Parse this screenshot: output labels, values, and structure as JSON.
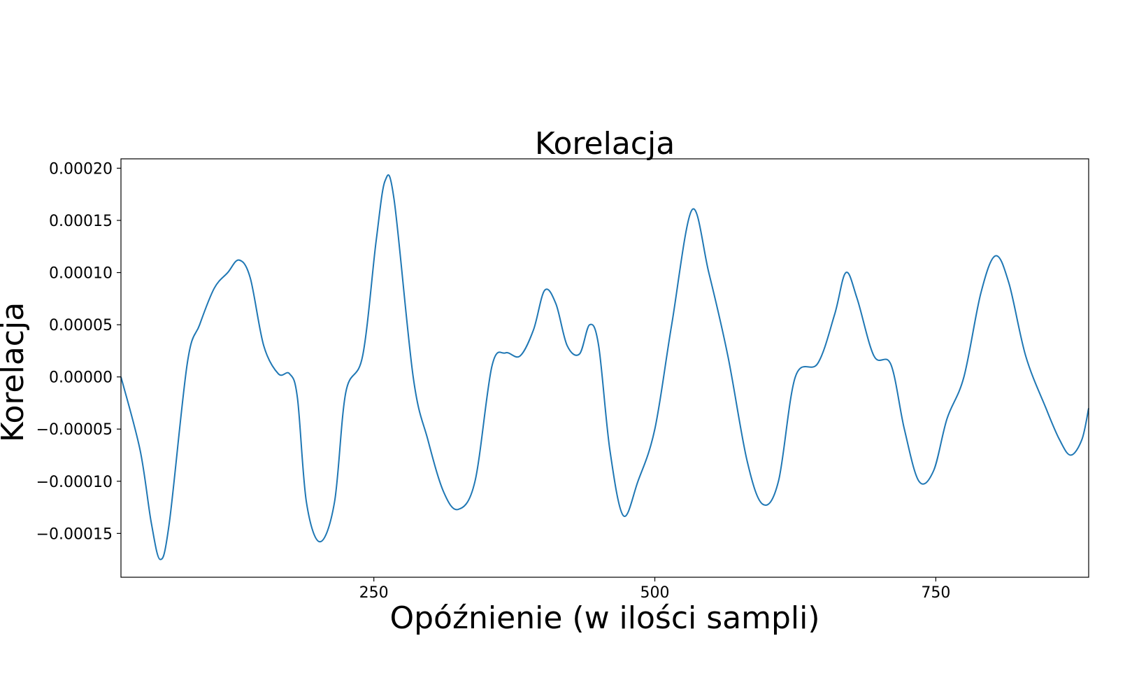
{
  "chart_data": {
    "type": "line",
    "title": "Korelacja",
    "xlabel": "Opóźnienie (w ilości sampli)",
    "ylabel": "Korelacja",
    "xlim": [
      25,
      886
    ],
    "ylim": [
      -0.000192,
      0.000209
    ],
    "grid": false,
    "x_ticks": [
      {
        "value": 250,
        "label": "250"
      },
      {
        "value": 500,
        "label": "500"
      },
      {
        "value": 750,
        "label": "750"
      }
    ],
    "y_ticks": [
      {
        "value": 0.0002,
        "label": "0.00020"
      },
      {
        "value": 0.00015,
        "label": "0.00015"
      },
      {
        "value": 0.0001,
        "label": "0.00010"
      },
      {
        "value": 5e-05,
        "label": "0.00005"
      },
      {
        "value": 0.0,
        "label": "0.00000"
      },
      {
        "value": -5e-05,
        "label": "−0.00005"
      },
      {
        "value": -0.0001,
        "label": "−0.00010"
      },
      {
        "value": -0.00015,
        "label": "−0.00015"
      }
    ],
    "series": [
      {
        "color": "#1f77b4",
        "points": [
          [
            25,
            0.0
          ],
          [
            42,
            -7e-05
          ],
          [
            52,
            -0.00014
          ],
          [
            60,
            -0.000175
          ],
          [
            68,
            -0.00014
          ],
          [
            84,
            1.3e-05
          ],
          [
            95,
            5e-05
          ],
          [
            108,
            8.5e-05
          ],
          [
            120,
            0.0001
          ],
          [
            130,
            0.000112
          ],
          [
            140,
            9.5e-05
          ],
          [
            152,
            3e-05
          ],
          [
            165,
            3e-06
          ],
          [
            175,
            3e-06
          ],
          [
            182,
            -2e-05
          ],
          [
            190,
            -0.00012
          ],
          [
            202,
            -0.000158
          ],
          [
            215,
            -0.00012
          ],
          [
            225,
            -1.5e-05
          ],
          [
            240,
            2e-05
          ],
          [
            252,
            0.00013
          ],
          [
            260,
            0.000188
          ],
          [
            268,
            0.00017
          ],
          [
            285,
            0.0
          ],
          [
            298,
            -6e-05
          ],
          [
            312,
            -0.00011
          ],
          [
            325,
            -0.000127
          ],
          [
            340,
            -0.0001
          ],
          [
            355,
            1e-05
          ],
          [
            367,
            2.3e-05
          ],
          [
            380,
            2e-05
          ],
          [
            392,
            4.5e-05
          ],
          [
            402,
            8.3e-05
          ],
          [
            412,
            7e-05
          ],
          [
            422,
            3e-05
          ],
          [
            433,
            2.2e-05
          ],
          [
            442,
            5e-05
          ],
          [
            450,
            3e-05
          ],
          [
            460,
            -7e-05
          ],
          [
            472,
            -0.000133
          ],
          [
            485,
            -0.0001
          ],
          [
            500,
            -5e-05
          ],
          [
            515,
            5e-05
          ],
          [
            533,
            0.00016
          ],
          [
            548,
            0.0001
          ],
          [
            565,
            2e-05
          ],
          [
            582,
            -8e-05
          ],
          [
            596,
            -0.000122
          ],
          [
            610,
            -0.0001
          ],
          [
            625,
            0.0
          ],
          [
            645,
            1.3e-05
          ],
          [
            660,
            6e-05
          ],
          [
            670,
            0.0001
          ],
          [
            680,
            7.5e-05
          ],
          [
            695,
            2e-05
          ],
          [
            710,
            1.2e-05
          ],
          [
            722,
            -5e-05
          ],
          [
            735,
            -0.0001
          ],
          [
            748,
            -9e-05
          ],
          [
            760,
            -4e-05
          ],
          [
            775,
            0.0
          ],
          [
            790,
            8e-05
          ],
          [
            803,
            0.000116
          ],
          [
            815,
            9e-05
          ],
          [
            830,
            2e-05
          ],
          [
            848,
            -3e-05
          ],
          [
            860,
            -6e-05
          ],
          [
            870,
            -7.5e-05
          ],
          [
            880,
            -6e-05
          ],
          [
            886,
            -3e-05
          ]
        ]
      }
    ]
  }
}
